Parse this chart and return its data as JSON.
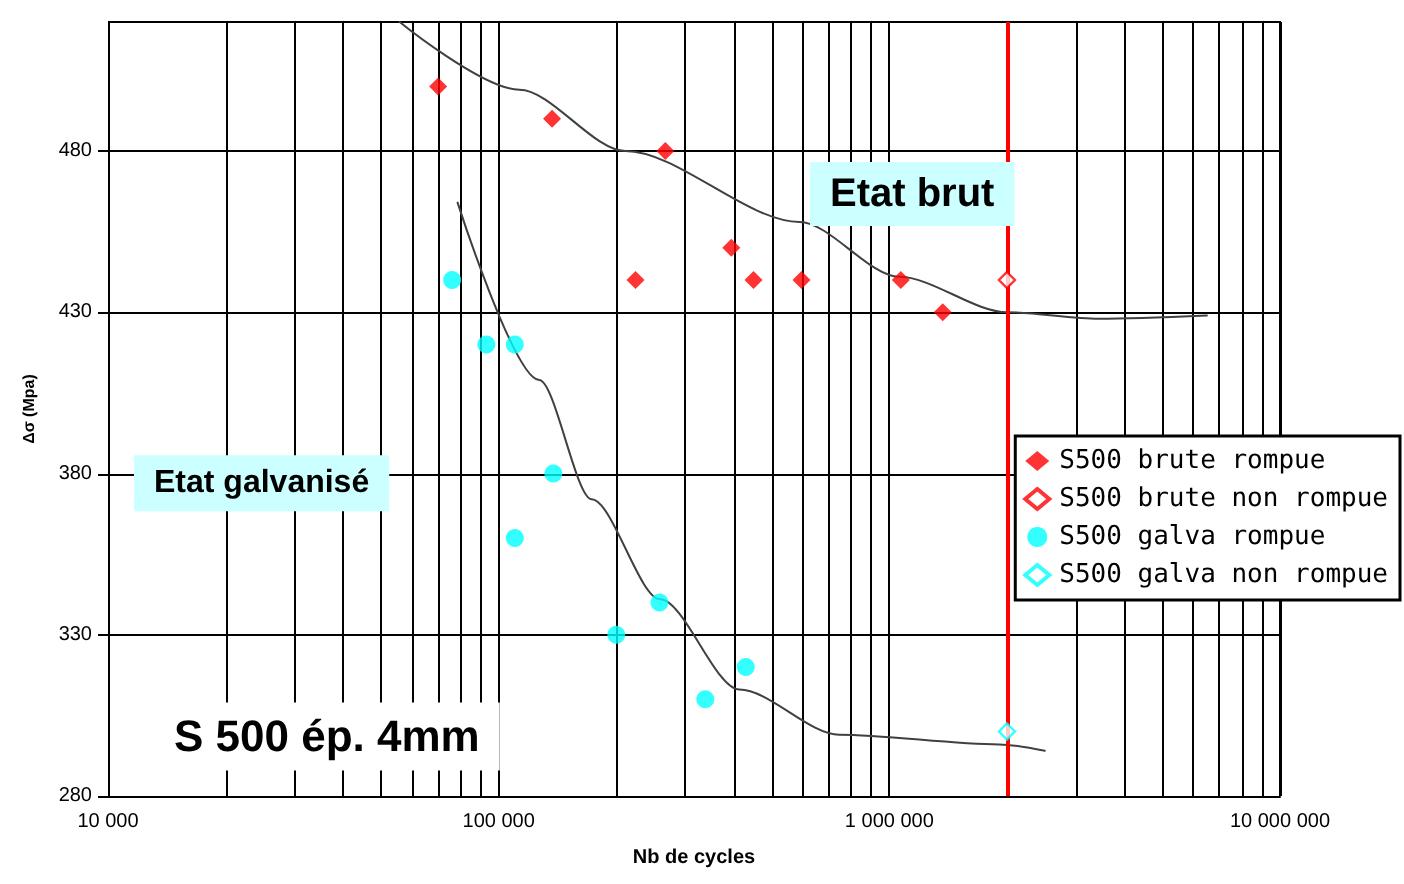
{
  "chart_data": {
    "type": "scatter",
    "xlabel": "Nb de cycles",
    "ylabel": "Δσ (Mpa)",
    "log": "x",
    "grid": true,
    "legend": "right",
    "xlim": [
      10000,
      10000000
    ],
    "ylim": [
      280,
      520
    ],
    "xticks": [
      {
        "value": 10000,
        "label": "10 000"
      },
      {
        "value": 20000,
        "label": null
      },
      {
        "value": 30000,
        "label": null
      },
      {
        "value": 40000,
        "label": null
      },
      {
        "value": 50000,
        "label": null
      },
      {
        "value": 60000,
        "label": null
      },
      {
        "value": 70000,
        "label": null
      },
      {
        "value": 80000,
        "label": null
      },
      {
        "value": 90000,
        "label": null
      },
      {
        "value": 100000,
        "label": "100 000"
      },
      {
        "value": 200000,
        "label": null
      },
      {
        "value": 300000,
        "label": null
      },
      {
        "value": 400000,
        "label": null
      },
      {
        "value": 500000,
        "label": null
      },
      {
        "value": 600000,
        "label": null
      },
      {
        "value": 700000,
        "label": null
      },
      {
        "value": 800000,
        "label": null
      },
      {
        "value": 900000,
        "label": null
      },
      {
        "value": 1000000,
        "label": "1 000 000"
      },
      {
        "value": 2000000,
        "label": null
      },
      {
        "value": 3000000,
        "label": null
      },
      {
        "value": 4000000,
        "label": null
      },
      {
        "value": 5000000,
        "label": null
      },
      {
        "value": 6000000,
        "label": null
      },
      {
        "value": 7000000,
        "label": null
      },
      {
        "value": 8000000,
        "label": null
      },
      {
        "value": 9000000,
        "label": null
      },
      {
        "value": 10000000,
        "label": "10 000 000"
      }
    ],
    "yticks": [
      280,
      330,
      380,
      430,
      480
    ],
    "series": [
      {
        "name": "S500 brute rompue",
        "color": "#ff0000",
        "marker": "diamond",
        "x": [
          70000,
          137000,
          267000,
          224000,
          394000,
          449000,
          596000,
          1070000,
          1370000
        ],
        "values": [
          500,
          490,
          480,
          440,
          450,
          440,
          440,
          440,
          430
        ]
      },
      {
        "name": "S500 brute non rompue",
        "color": "#ff0000",
        "marker": "diamond",
        "x": [
          2000000
        ],
        "values": [
          440
        ]
      },
      {
        "name": "S500 galva rompue",
        "color": "#00ffff",
        "marker": "circle",
        "x": [
          76000,
          93000,
          110000,
          138000,
          110000,
          200000,
          258000,
          338000,
          429000
        ],
        "values": [
          440,
          420,
          420,
          380,
          360,
          330,
          340,
          310,
          320
        ]
      },
      {
        "name": "S500 galva non rompue",
        "color": "#00ffff",
        "marker": "diamond",
        "x": [
          2000000
        ],
        "values": [
          300
        ]
      },
      {
        "type": "line",
        "color": "#404040",
        "marker": "none",
        "x": [
          55800,
          113000,
          211000,
          589000,
          1060000,
          2000000,
          3440000,
          6500000
        ],
        "values": [
          520,
          499,
          480,
          458,
          441,
          430,
          428,
          429
        ]
      },
      {
        "type": "line",
        "color": "#404040",
        "marker": "none",
        "x": [
          78500,
          127000,
          173000,
          259000,
          413000,
          744000,
          1910000,
          2500000
        ],
        "values": [
          464,
          409,
          372,
          341,
          313,
          299,
          296,
          294
        ]
      }
    ],
    "ref_lines": [
      {
        "axis": "x",
        "value": 2000000,
        "color": "#ff0000"
      }
    ],
    "annotations": [
      "Etat brut",
      "Etat galvanisé",
      "S 500 ép. 4mm"
    ]
  }
}
